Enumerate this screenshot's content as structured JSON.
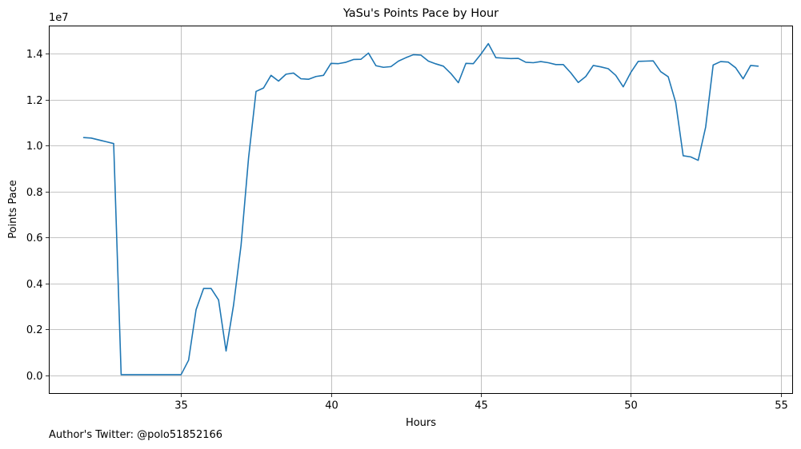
{
  "footer": {
    "author_text": "Author's Twitter: @polo51852166"
  },
  "chart_data": {
    "type": "line",
    "title": "YaSu's Points Pace by Hour",
    "xlabel": "Hours",
    "ylabel": "Points Pace",
    "y_scale_label": "1e7",
    "xlim": [
      30.6,
      55.4
    ],
    "ylim": [
      -0.08,
      1.52
    ],
    "x_ticks": [
      35,
      40,
      45,
      50,
      55
    ],
    "x_tick_labels": [
      "35",
      "40",
      "45",
      "50",
      "55"
    ],
    "y_ticks": [
      0.0,
      0.2,
      0.4,
      0.6,
      0.8,
      1.0,
      1.2,
      1.4
    ],
    "y_tick_labels": [
      "0.0",
      "0.2",
      "0.4",
      "0.6",
      "0.8",
      "1.0",
      "1.2",
      "1.4"
    ],
    "grid": true,
    "line_color": "#1f77b4",
    "series": [
      {
        "x": [
          31.75,
          32.0,
          32.5,
          32.75,
          33.0,
          34.0,
          35.0,
          35.25,
          35.5,
          35.75,
          36.0,
          36.25,
          36.5,
          36.75,
          37.0,
          37.25,
          37.5,
          37.75,
          38.0,
          38.25,
          38.5,
          38.75,
          39.0,
          39.25,
          39.5,
          39.75,
          40.0,
          40.25,
          40.5,
          40.75,
          41.0,
          41.25,
          41.5,
          41.75,
          42.0,
          42.25,
          42.5,
          42.75,
          43.0,
          43.25,
          43.5,
          43.75,
          44.0,
          44.25,
          44.5,
          44.75,
          45.0,
          45.25,
          45.5,
          45.75,
          46.0,
          46.25,
          46.5,
          46.75,
          47.0,
          47.25,
          47.5,
          47.75,
          48.0,
          48.25,
          48.5,
          48.75,
          49.0,
          49.25,
          49.5,
          49.75,
          50.0,
          50.25,
          50.5,
          50.75,
          51.0,
          51.25,
          51.5,
          51.75,
          52.0,
          52.25,
          52.5,
          52.75,
          53.0,
          53.25,
          53.5,
          53.75,
          54.0,
          54.25
        ],
        "y": [
          1.034,
          1.032,
          1.016,
          1.008,
          0.002,
          0.002,
          0.002,
          0.065,
          0.285,
          0.377,
          0.377,
          0.327,
          0.105,
          0.305,
          0.565,
          0.945,
          1.235,
          1.25,
          1.305,
          1.28,
          1.31,
          1.315,
          1.29,
          1.288,
          1.3,
          1.305,
          1.357,
          1.356,
          1.362,
          1.374,
          1.375,
          1.402,
          1.347,
          1.34,
          1.343,
          1.367,
          1.382,
          1.395,
          1.393,
          1.367,
          1.355,
          1.345,
          1.313,
          1.273,
          1.357,
          1.356,
          1.397,
          1.443,
          1.382,
          1.38,
          1.378,
          1.379,
          1.362,
          1.36,
          1.365,
          1.36,
          1.352,
          1.352,
          1.316,
          1.274,
          1.3,
          1.348,
          1.342,
          1.334,
          1.305,
          1.255,
          1.317,
          1.366,
          1.367,
          1.368,
          1.321,
          1.299,
          1.187,
          0.955,
          0.95,
          0.935,
          1.08,
          1.35,
          1.365,
          1.363,
          1.338,
          1.29,
          1.348,
          1.345
        ]
      }
    ]
  }
}
